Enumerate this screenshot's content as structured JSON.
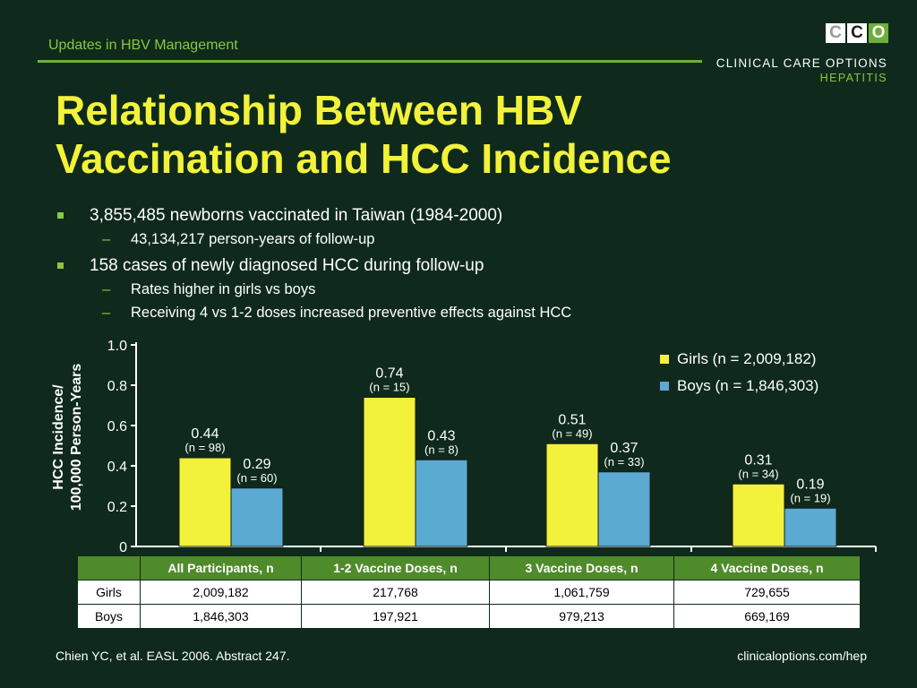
{
  "header": {
    "section_title": "Updates in HBV Management",
    "logo": {
      "letters": [
        "C",
        "C",
        "O"
      ],
      "name": "CLINICAL CARE OPTIONS",
      "sub": "HEPATITIS"
    }
  },
  "title": "Relationship Between HBV Vaccination and HCC Incidence",
  "bullets": [
    {
      "text": "3,855,485 newborns vaccinated in Taiwan (1984-2000)",
      "sub": [
        "43,134,217 person-years of follow-up"
      ]
    },
    {
      "text": "158 cases of newly diagnosed HCC during follow-up",
      "sub": [
        "Rates higher in girls vs boys",
        "Receiving 4 vs 1-2 doses increased preventive effects against HCC"
      ]
    }
  ],
  "chart_data": {
    "type": "bar",
    "ylabel": "HCC Incidence/\n100,000 Person-Years",
    "ylim": [
      0,
      1.0
    ],
    "yticks": [
      "0",
      "0.2",
      "0.4",
      "0.6",
      "0.8",
      "1.0"
    ],
    "ytick_values": [
      0,
      0.2,
      0.4,
      0.6,
      0.8,
      1.0
    ],
    "categories": [
      "All Participants",
      "1-2 Vaccine Doses",
      "3 Vaccine Doses",
      "4 Vaccine Doses"
    ],
    "series": [
      {
        "name": "Girls (n = 2,009,182)",
        "color": "#f2f23a",
        "values": [
          0.44,
          0.74,
          0.51,
          0.31
        ],
        "labels": [
          "0.44",
          "0.74",
          "0.51",
          "0.31"
        ],
        "n_labels": [
          "(n = 98)",
          "(n = 15)",
          "(n = 49)",
          "(n = 34)"
        ]
      },
      {
        "name": "Boys (n = 1,846,303)",
        "color": "#5aaad2",
        "values": [
          0.29,
          0.43,
          0.37,
          0.19
        ],
        "labels": [
          "0.29",
          "0.43",
          "0.37",
          "0.19"
        ],
        "n_labels": [
          "(n = 60)",
          "(n = 8)",
          "(n = 33)",
          "(n = 19)"
        ]
      }
    ],
    "legend_position": "top-right",
    "grid": false
  },
  "table": {
    "headers": [
      "",
      "All Participants, n",
      "1-2 Vaccine Doses, n",
      "3 Vaccine Doses, n",
      "4 Vaccine Doses, n"
    ],
    "rows": [
      [
        "Girls",
        "2,009,182",
        "217,768",
        "1,061,759",
        "729,655"
      ],
      [
        "Boys",
        "1,846,303",
        "197,921",
        "979,213",
        "669,169"
      ]
    ]
  },
  "footer": {
    "citation": "Chien YC, et al. EASL 2006. Abstract 247.",
    "url": "clinicaloptions.com/hep"
  },
  "colors": {
    "background": "#0f2a1c",
    "title": "#f2f23a",
    "accent_green": "#8dc63f",
    "table_header": "#4f8a2b"
  }
}
